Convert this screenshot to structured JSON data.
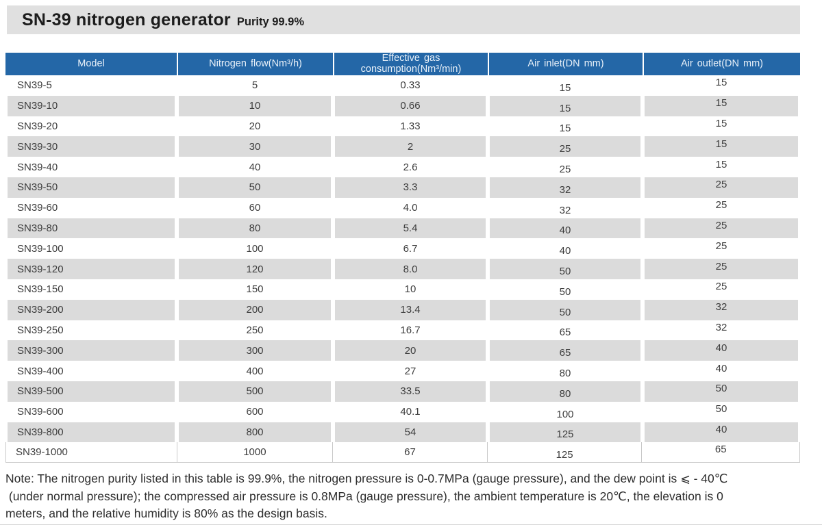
{
  "page": {
    "title": "SN-39 nitrogen generator",
    "subtitle": "Purity 99.9%"
  },
  "colors": {
    "header_blue": "#2467a7",
    "title_bar_gray": "#e0e0e0",
    "stripe_gray": "#dbdbdb"
  },
  "table": {
    "headers": {
      "model": "Model",
      "flow": "Nitrogen flow(Nm³/h)",
      "consumption": "Effective gas consumption(Nm³/min)",
      "inlet": "Air inlet(DN mm)",
      "outlet": "Air outlet(DN mm)"
    },
    "rows": [
      {
        "model": "SN39-5",
        "flow": "5",
        "consumption": "0.33",
        "inlet": "15",
        "outlet": "15"
      },
      {
        "model": "SN39-10",
        "flow": "10",
        "consumption": "0.66",
        "inlet": "15",
        "outlet": "15"
      },
      {
        "model": "SN39-20",
        "flow": "20",
        "consumption": "1.33",
        "inlet": "15",
        "outlet": "15"
      },
      {
        "model": "SN39-30",
        "flow": "30",
        "consumption": "2",
        "inlet": "25",
        "outlet": "15"
      },
      {
        "model": "SN39-40",
        "flow": "40",
        "consumption": "2.6",
        "inlet": "25",
        "outlet": "15"
      },
      {
        "model": "SN39-50",
        "flow": "50",
        "consumption": "3.3",
        "inlet": "32",
        "outlet": "25"
      },
      {
        "model": "SN39-60",
        "flow": "60",
        "consumption": "4.0",
        "inlet": "32",
        "outlet": "25"
      },
      {
        "model": "SN39-80",
        "flow": "80",
        "consumption": "5.4",
        "inlet": "40",
        "outlet": "25"
      },
      {
        "model": "SN39-100",
        "flow": "100",
        "consumption": "6.7",
        "inlet": "40",
        "outlet": "25"
      },
      {
        "model": "SN39-120",
        "flow": "120",
        "consumption": "8.0",
        "inlet": "50",
        "outlet": "25"
      },
      {
        "model": "SN39-150",
        "flow": "150",
        "consumption": "10",
        "inlet": "50",
        "outlet": "25"
      },
      {
        "model": "SN39-200",
        "flow": "200",
        "consumption": "13.4",
        "inlet": "50",
        "outlet": "32"
      },
      {
        "model": "SN39-250",
        "flow": "250",
        "consumption": "16.7",
        "inlet": "65",
        "outlet": "32"
      },
      {
        "model": "SN39-300",
        "flow": "300",
        "consumption": "20",
        "inlet": "65",
        "outlet": "40"
      },
      {
        "model": "SN39-400",
        "flow": "400",
        "consumption": "27",
        "inlet": "80",
        "outlet": "40"
      },
      {
        "model": "SN39-500",
        "flow": "500",
        "consumption": "33.5",
        "inlet": "80",
        "outlet": "50"
      },
      {
        "model": "SN39-600",
        "flow": "600",
        "consumption": "40.1",
        "inlet": "100",
        "outlet": "50"
      },
      {
        "model": "SN39-800",
        "flow": "800",
        "consumption": "54",
        "inlet": "125",
        "outlet": "40"
      },
      {
        "model": "SN39-1000",
        "flow": "1000",
        "consumption": "67",
        "inlet": "125",
        "outlet": "65"
      }
    ]
  },
  "note": "Note: The nitrogen purity listed in this table is 99.9%, the nitrogen pressure is 0-0.7MPa (gauge pressure), and the dew point is ⩽ - 40℃\n (under normal pressure); the compressed air pressure is 0.8MPa (gauge pressure), the ambient temperature is 20℃, the elevation is 0\nmeters, and the relative humidity is 80% as the design basis."
}
